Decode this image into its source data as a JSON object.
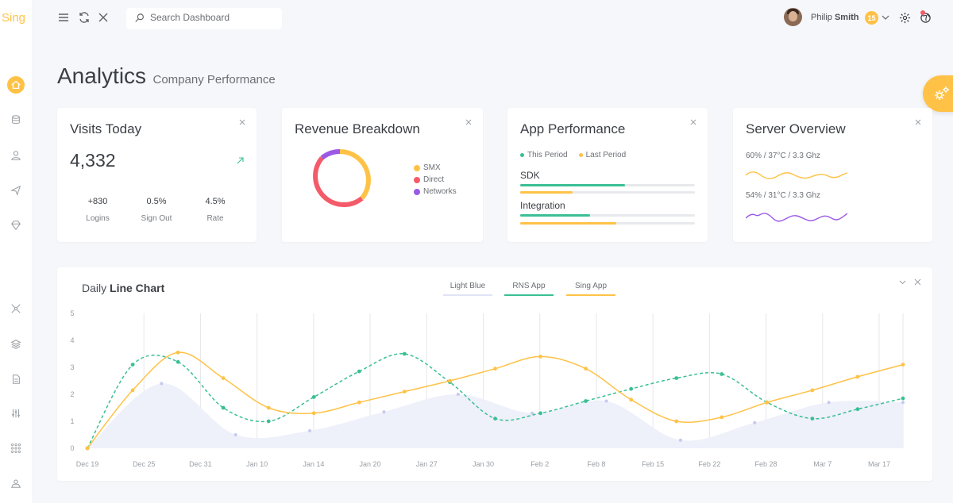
{
  "app": {
    "logo": "Sing"
  },
  "search": {
    "placeholder": "Search Dashboard"
  },
  "user": {
    "first": "Philip",
    "last": "Smith",
    "badge": "15"
  },
  "page": {
    "title": "Analytics",
    "subtitle": "Company Performance"
  },
  "visits": {
    "title": "Visits Today",
    "value": "4,332",
    "stats": [
      {
        "value": "+830",
        "label": "Logins"
      },
      {
        "value": "0.5%",
        "label": "Sign Out"
      },
      {
        "value": "4.5%",
        "label": "Rate"
      }
    ]
  },
  "revenue": {
    "title": "Revenue Breakdown",
    "legend": [
      {
        "label": "SMX",
        "color": "#ffc247"
      },
      {
        "label": "Direct",
        "color": "#f45b69"
      },
      {
        "label": "Networks",
        "color": "#9b59e6"
      }
    ]
  },
  "app_perf": {
    "title": "App Performance",
    "legend": [
      {
        "label": "This Period",
        "color": "#3abf94"
      },
      {
        "label": "Last Period",
        "color": "#ffc247"
      }
    ],
    "rows": [
      {
        "label": "SDK",
        "this_period": 0.6,
        "last_period": 0.3
      },
      {
        "label": "Integration",
        "this_period": 0.4,
        "last_period": 0.55
      }
    ]
  },
  "server": {
    "title": "Server Overview",
    "rows": [
      {
        "label": "60% / 37°C / 3.3 Ghz",
        "color": "#ffc247"
      },
      {
        "label": "54% / 31°C / 3.3 Ghz",
        "color": "#9b59e6"
      }
    ]
  },
  "chart_card": {
    "title_light": "Daily",
    "title_bold": "Line Chart",
    "tabs": [
      {
        "label": "Light Blue",
        "color": "#e1e3f5"
      },
      {
        "label": "RNS App",
        "color": "#3abf94"
      },
      {
        "label": "Sing App",
        "color": "#ffc247"
      }
    ]
  },
  "chart_data": {
    "type": "line",
    "ylim": [
      0,
      5
    ],
    "yticks": [
      0,
      1,
      2,
      3,
      4,
      5
    ],
    "xticks": [
      "Dec 19",
      "Dec 25",
      "Dec 31",
      "Jan 10",
      "Jan 14",
      "Jan 20",
      "Jan 27",
      "Jan 30",
      "Feb 2",
      "Feb 8",
      "Feb 15",
      "Feb 22",
      "Feb 28",
      "Mar 7",
      "Mar 17"
    ],
    "grid": "vertical",
    "series": [
      {
        "name": "Light Blue",
        "color": "#e1e3f5",
        "style": "area",
        "values": [
          0,
          2.4,
          0.5,
          0.65,
          1.35,
          2.0,
          1.3,
          1.75,
          0.3,
          0.95,
          1.7,
          1.7
        ]
      },
      {
        "name": "RNS App",
        "color": "#3abf94",
        "style": "dashed",
        "values": [
          0,
          3.1,
          3.2,
          1.5,
          1.0,
          1.9,
          2.85,
          3.5,
          2.45,
          1.1,
          1.3,
          1.75,
          2.2,
          2.6,
          2.75,
          1.7,
          1.1,
          1.45,
          1.85
        ]
      },
      {
        "name": "Sing App",
        "color": "#ffc247",
        "style": "solid",
        "values": [
          0,
          2.15,
          3.55,
          2.6,
          1.5,
          1.3,
          1.7,
          2.1,
          2.5,
          2.95,
          3.4,
          2.95,
          1.8,
          1.0,
          1.15,
          1.7,
          2.15,
          2.65,
          3.1
        ]
      }
    ]
  }
}
